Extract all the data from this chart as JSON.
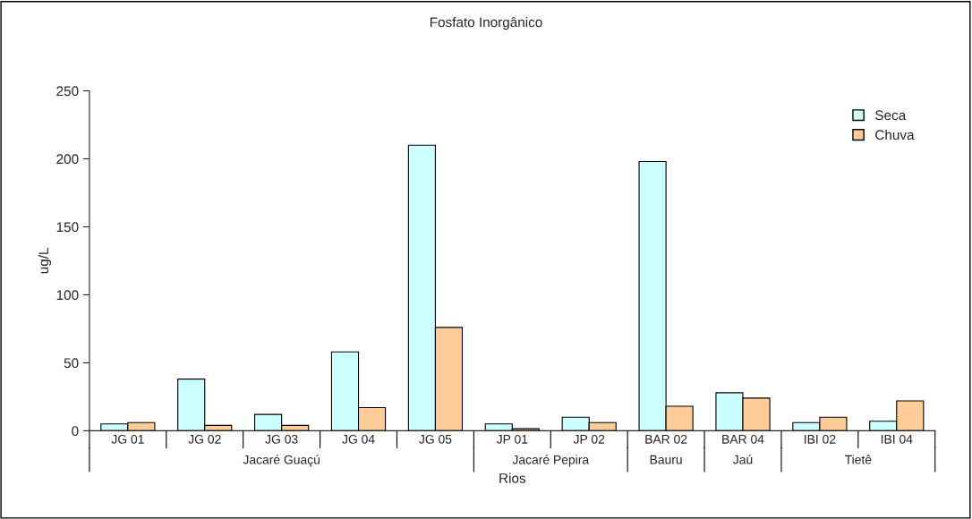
{
  "chart_data": {
    "type": "bar",
    "title": "Fosfato Inorgânico",
    "xlabel": "Rios",
    "ylabel": "ug/L",
    "categories": [
      "JG 01",
      "JG 02",
      "JG 03",
      "JG 04",
      "JG 05",
      "JP 01",
      "JP 02",
      "BAR 02",
      "BAR 04",
      "IBI 02",
      "IBI 04"
    ],
    "series": [
      {
        "name": "Seca",
        "color": "#ccffff",
        "values": [
          5,
          38,
          12,
          58,
          210,
          5,
          10,
          198,
          28,
          6,
          7
        ]
      },
      {
        "name": "Chuva",
        "color": "#ffcc99",
        "values": [
          6,
          4,
          4,
          17,
          76,
          1.5,
          6,
          18,
          24,
          10,
          22
        ]
      }
    ],
    "annotations": [
      "Jacaré Guaçú",
      "Jacaré Pepira",
      "Bauru",
      "Jaú",
      "Tietê"
    ],
    "ylim": [
      0,
      250
    ],
    "yticks": [
      0,
      50,
      100,
      150,
      200,
      250
    ],
    "grid": false,
    "legend": "top right"
  }
}
